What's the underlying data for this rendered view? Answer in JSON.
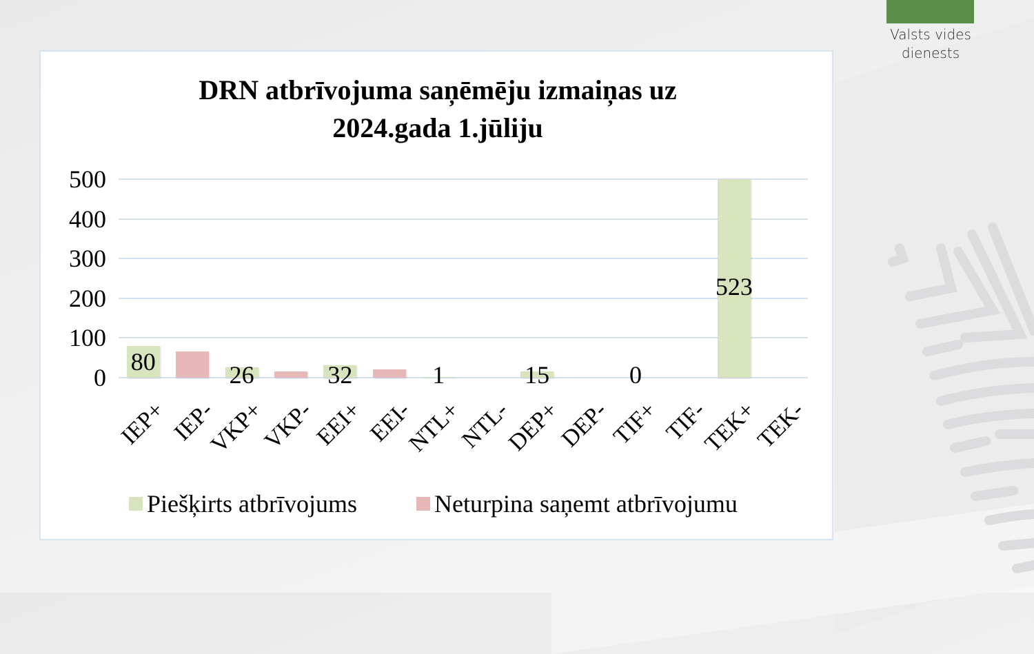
{
  "branding": {
    "org_name_line1": "Valsts vides",
    "org_name_line2": "dienests",
    "logo_color": "#5c8e4b"
  },
  "chart_data": {
    "type": "bar",
    "title_line1": "DRN atbrīvojuma saņēmēju izmaiņas uz",
    "title_line2": "2024.gada 1.jūliju",
    "xlabel": "",
    "ylabel": "",
    "ylim": [
      0,
      500
    ],
    "yticks": [
      "0",
      "100",
      "200",
      "300",
      "400",
      "500"
    ],
    "grid": true,
    "legend_position": "bottom",
    "categories": [
      "IEP+",
      "IEP-",
      "VKP+",
      "VKP-",
      "EEI+",
      "EEI-",
      "NTL+",
      "NTL-",
      "DEP+",
      "DEP-",
      "TIF+",
      "TIF-",
      "TEK+",
      "TEK-"
    ],
    "series": [
      {
        "name": "Piešķirts atbrīvojums",
        "color": "#d7e4bd",
        "values": [
          80,
          null,
          26,
          null,
          32,
          null,
          1,
          null,
          15,
          null,
          0,
          null,
          523,
          null
        ],
        "labels": [
          "80",
          "",
          "26",
          "",
          "32",
          "",
          "1",
          "",
          "15",
          "",
          "0",
          "",
          "523",
          ""
        ]
      },
      {
        "name": "Neturpina saņemt atbrīvojumu",
        "color": "#e6b9b8",
        "values": [
          null,
          66,
          null,
          16,
          null,
          20,
          null,
          null,
          null,
          null,
          null,
          null,
          null,
          null
        ],
        "labels": [
          "",
          "",
          "",
          "",
          "",
          "",
          "",
          "",
          "",
          "",
          "",
          "",
          "",
          ""
        ]
      }
    ]
  },
  "legend": {
    "item1": "Piešķirts atbrīvojums",
    "item2": "Neturpina saņemt atbrīvojumu"
  }
}
